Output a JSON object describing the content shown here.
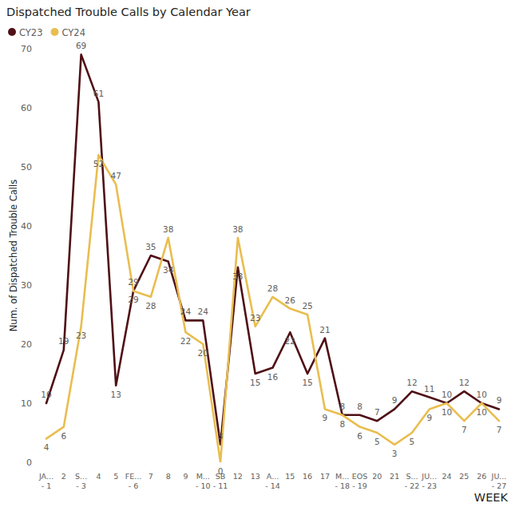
{
  "chart_data": {
    "type": "line",
    "title": "Dispatched Trouble Calls by Calendar Year",
    "x_label": "WEEK",
    "y_label": "Num. of Dispatched Trouble Calls",
    "categories": [
      "JA... - 1",
      "2",
      "S... - 3",
      "4",
      "5",
      "FE... - 6",
      "7",
      "8",
      "9",
      "M... - 10",
      "SB - 11",
      "12",
      "13",
      "A... - 14",
      "15",
      "16",
      "17",
      "M... - 18",
      "EOS - 19",
      "20",
      "21",
      "S... - 22",
      "JU... - 23",
      "24",
      "25",
      "26",
      "JU... - 27"
    ],
    "series": [
      {
        "name": "CY23",
        "color": "#4f1016",
        "values": [
          10,
          19,
          69,
          61,
          13,
          29,
          35,
          34,
          24,
          24,
          3,
          33,
          15,
          16,
          22,
          15,
          21,
          8,
          8,
          7,
          9,
          12,
          11,
          10,
          12,
          10,
          9
        ]
      },
      {
        "name": "CY24",
        "color": "#e9bd4f",
        "values": [
          4,
          6,
          23,
          52,
          47,
          29,
          28,
          38,
          22,
          20,
          0,
          38,
          23,
          28,
          26,
          25,
          9,
          8,
          6,
          5,
          3,
          5,
          9,
          10,
          7,
          10,
          7
        ]
      }
    ],
    "ylim": [
      0,
      70
    ],
    "yticks": [
      0,
      10,
      20,
      30,
      40,
      50,
      60,
      70
    ],
    "grid": false,
    "legend": "top-left",
    "data_labels": true
  }
}
